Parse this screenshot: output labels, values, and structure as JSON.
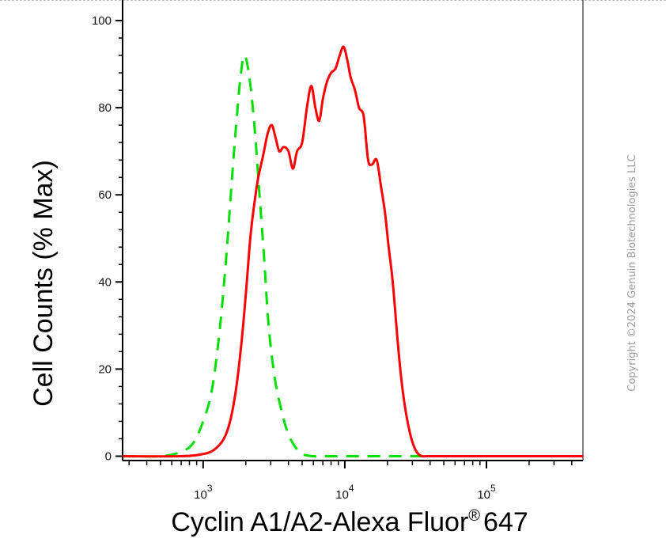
{
  "chart_data": {
    "type": "line",
    "title": "",
    "xlabel": "Cyclin A1/A2-Alexa Fluor",
    "xlabel_superscript": "®",
    "xlabel_suffix": "647",
    "ylabel": "Cell Counts (% Max)",
    "x_scale": "log",
    "xlim": [
      270,
      480000
    ],
    "ylim": [
      -1,
      104
    ],
    "y_ticks": [
      0,
      20,
      40,
      60,
      80,
      100
    ],
    "y_tick_labels": [
      "0",
      "20",
      "40",
      "60",
      "80",
      "100"
    ],
    "x_ticks": [
      1000,
      10000,
      100000
    ],
    "x_tick_bases": [
      "10",
      "10",
      "10"
    ],
    "x_tick_exponents": [
      "3",
      "4",
      "5"
    ],
    "grid": false,
    "series": [
      {
        "color": "#00e000",
        "dash": true,
        "x": [
          270,
          500,
          700,
          850,
          1000,
          1150,
          1300,
          1450,
          1600,
          1750,
          1850,
          1950,
          2100,
          2300,
          2500,
          2700,
          2900,
          3200,
          3600,
          4000,
          4500,
          5000,
          6000,
          8000,
          20000,
          100000,
          480000
        ],
        "y": [
          0,
          0,
          1,
          3,
          8,
          15,
          28,
          45,
          64,
          80,
          88,
          92,
          88,
          76,
          60,
          45,
          30,
          18,
          10,
          5,
          2,
          0.5,
          0,
          0,
          0,
          0,
          0
        ]
      },
      {
        "color": "#ff0000",
        "dash": false,
        "x": [
          270,
          700,
          1000,
          1200,
          1400,
          1550,
          1700,
          1850,
          2000,
          2150,
          2300,
          2450,
          2650,
          2850,
          3050,
          3250,
          3450,
          3700,
          4000,
          4300,
          4600,
          5000,
          5400,
          5800,
          6200,
          6600,
          7000,
          7500,
          8000,
          8600,
          9200,
          9800,
          10400,
          11000,
          11800,
          12600,
          13600,
          14600,
          15600,
          16800,
          18000,
          19200,
          20400,
          21800,
          23400,
          25000,
          27000,
          29000,
          31000,
          33000,
          35000,
          38000,
          42000,
          48000,
          60000,
          100000,
          480000
        ],
        "y": [
          0,
          0,
          0.5,
          1.5,
          4,
          8,
          15,
          25,
          37,
          50,
          58,
          64,
          69,
          74,
          76,
          73,
          70,
          71,
          70,
          66,
          70,
          72,
          80,
          85,
          80,
          77,
          82,
          86,
          88,
          89,
          92,
          94,
          91,
          87,
          84,
          80,
          78,
          68,
          67,
          68,
          62,
          56,
          48,
          40,
          28,
          18,
          10,
          5,
          2,
          0.5,
          0,
          0,
          0,
          0,
          0,
          0,
          0
        ]
      }
    ]
  },
  "watermark": "Copyright ©2024 Genuin Biotechnologies LLC"
}
